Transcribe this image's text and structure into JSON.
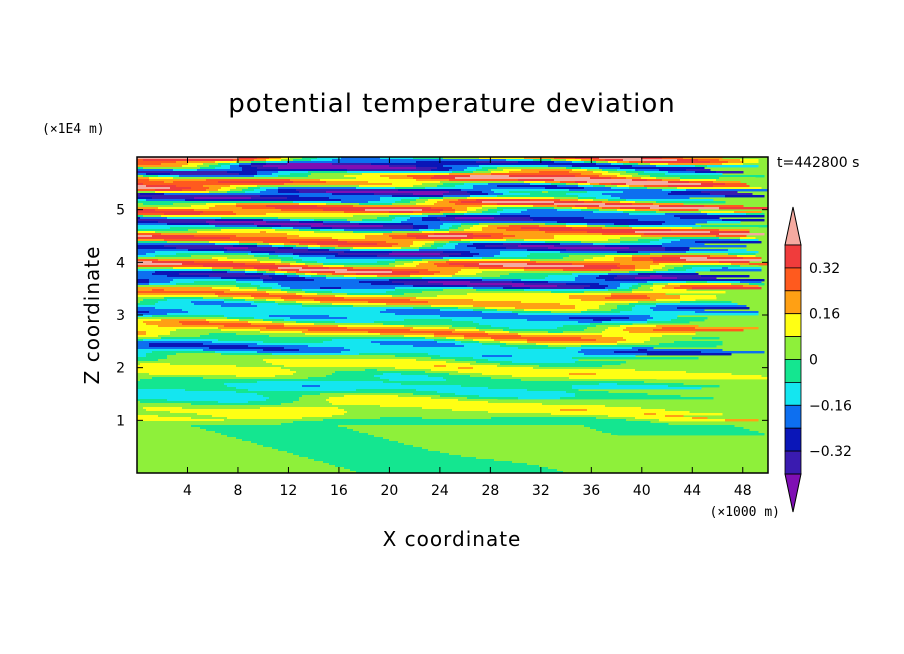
{
  "chart_data": {
    "type": "heatmap",
    "title": "potential temperature deviation",
    "xlabel": "X coordinate",
    "ylabel": "Z coordinate",
    "x_unit": "(×1000 m)",
    "y_unit": "(×1E4 m)",
    "time_label": "t=442800 s",
    "xlim": [
      0,
      50
    ],
    "ylim": [
      0,
      6
    ],
    "x_ticks": [
      4,
      8,
      12,
      16,
      20,
      24,
      28,
      32,
      36,
      40,
      44,
      48
    ],
    "y_ticks": [
      1,
      2,
      3,
      4,
      5
    ],
    "colorbar": {
      "levels": [
        -0.4,
        -0.32,
        -0.24,
        -0.16,
        -0.08,
        0,
        0.08,
        0.16,
        0.24,
        0.32,
        0.4
      ],
      "tick_labels": [
        "0.32",
        "0.16",
        "0",
        "−0.16",
        "−0.32"
      ],
      "tick_values": [
        0.32,
        0.16,
        0,
        -0.16,
        -0.32
      ],
      "colors": [
        "#7f0fb4",
        "#3a1bb0",
        "#0a16b8",
        "#0d6ff0",
        "#14e6f0",
        "#14e690",
        "#8ef03a",
        "#ffff14",
        "#ffa014",
        "#ff5a1e",
        "#f03c3c",
        "#f5aaa0"
      ],
      "extend": "both"
    }
  }
}
